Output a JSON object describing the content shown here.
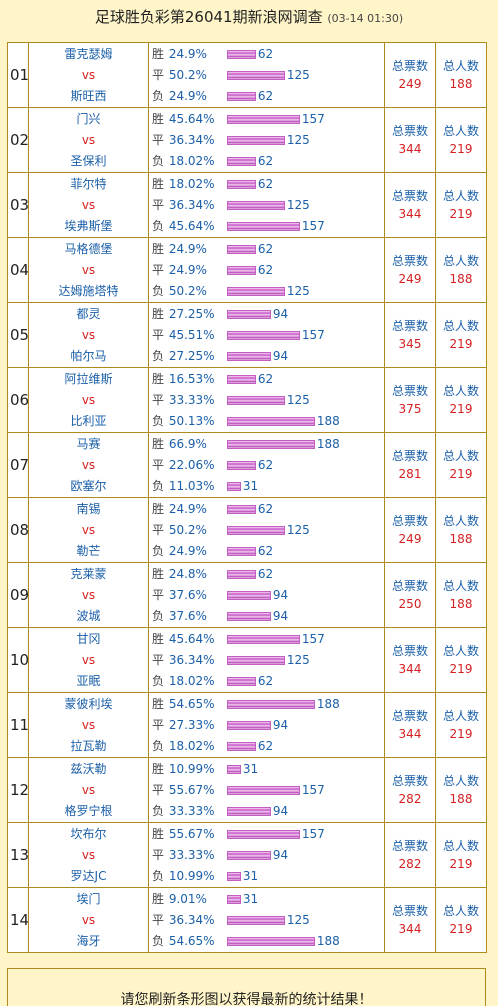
{
  "header": {
    "title": "足球胜负彩第26041期新浪网调查",
    "timestamp": "(03-14 01:30)"
  },
  "labels": {
    "vs": "vs",
    "win": "胜",
    "draw": "平",
    "lose": "负",
    "votes_label": "总票数",
    "people_label": "总人数"
  },
  "colors": {
    "team_text": "#1a5fa8",
    "vs_text": "#d62020",
    "stat_value": "#d62020",
    "bar": "#c658c6",
    "border": "#b08a1a",
    "background": "#fff5c8"
  },
  "matches": [
    {
      "no": "01",
      "home": "雷克瑟姆",
      "away": "斯旺西",
      "win_pct": "24.9%",
      "win_cnt": "62",
      "draw_pct": "50.2%",
      "draw_cnt": "125",
      "lose_pct": "24.9%",
      "lose_cnt": "62",
      "votes": "249",
      "people": "188"
    },
    {
      "no": "02",
      "home": "门兴",
      "away": "圣保利",
      "win_pct": "45.64%",
      "win_cnt": "157",
      "draw_pct": "36.34%",
      "draw_cnt": "125",
      "lose_pct": "18.02%",
      "lose_cnt": "62",
      "votes": "344",
      "people": "219"
    },
    {
      "no": "03",
      "home": "菲尔特",
      "away": "埃弗斯堡",
      "win_pct": "18.02%",
      "win_cnt": "62",
      "draw_pct": "36.34%",
      "draw_cnt": "125",
      "lose_pct": "45.64%",
      "lose_cnt": "157",
      "votes": "344",
      "people": "219"
    },
    {
      "no": "04",
      "home": "马格德堡",
      "away": "达姆施塔特",
      "win_pct": "24.9%",
      "win_cnt": "62",
      "draw_pct": "24.9%",
      "draw_cnt": "62",
      "lose_pct": "50.2%",
      "lose_cnt": "125",
      "votes": "249",
      "people": "188"
    },
    {
      "no": "05",
      "home": "都灵",
      "away": "帕尔马",
      "win_pct": "27.25%",
      "win_cnt": "94",
      "draw_pct": "45.51%",
      "draw_cnt": "157",
      "lose_pct": "27.25%",
      "lose_cnt": "94",
      "votes": "345",
      "people": "219"
    },
    {
      "no": "06",
      "home": "阿拉维斯",
      "away": "比利亚",
      "win_pct": "16.53%",
      "win_cnt": "62",
      "draw_pct": "33.33%",
      "draw_cnt": "125",
      "lose_pct": "50.13%",
      "lose_cnt": "188",
      "votes": "375",
      "people": "219"
    },
    {
      "no": "07",
      "home": "马赛",
      "away": "欧塞尔",
      "win_pct": "66.9%",
      "win_cnt": "188",
      "draw_pct": "22.06%",
      "draw_cnt": "62",
      "lose_pct": "11.03%",
      "lose_cnt": "31",
      "votes": "281",
      "people": "219"
    },
    {
      "no": "08",
      "home": "南锡",
      "away": "勒芒",
      "win_pct": "24.9%",
      "win_cnt": "62",
      "draw_pct": "50.2%",
      "draw_cnt": "125",
      "lose_pct": "24.9%",
      "lose_cnt": "62",
      "votes": "249",
      "people": "188"
    },
    {
      "no": "09",
      "home": "克莱蒙",
      "away": "波城",
      "win_pct": "24.8%",
      "win_cnt": "62",
      "draw_pct": "37.6%",
      "draw_cnt": "94",
      "lose_pct": "37.6%",
      "lose_cnt": "94",
      "votes": "250",
      "people": "188"
    },
    {
      "no": "10",
      "home": "甘冈",
      "away": "亚眠",
      "win_pct": "45.64%",
      "win_cnt": "157",
      "draw_pct": "36.34%",
      "draw_cnt": "125",
      "lose_pct": "18.02%",
      "lose_cnt": "62",
      "votes": "344",
      "people": "219"
    },
    {
      "no": "11",
      "home": "蒙彼利埃",
      "away": "拉瓦勒",
      "win_pct": "54.65%",
      "win_cnt": "188",
      "draw_pct": "27.33%",
      "draw_cnt": "94",
      "lose_pct": "18.02%",
      "lose_cnt": "62",
      "votes": "344",
      "people": "219"
    },
    {
      "no": "12",
      "home": "兹沃勒",
      "away": "格罗宁根",
      "win_pct": "10.99%",
      "win_cnt": "31",
      "draw_pct": "55.67%",
      "draw_cnt": "157",
      "lose_pct": "33.33%",
      "lose_cnt": "94",
      "votes": "282",
      "people": "188"
    },
    {
      "no": "13",
      "home": "坎布尔",
      "away": "罗达JC",
      "win_pct": "55.67%",
      "win_cnt": "157",
      "draw_pct": "33.33%",
      "draw_cnt": "94",
      "lose_pct": "10.99%",
      "lose_cnt": "31",
      "votes": "282",
      "people": "219"
    },
    {
      "no": "14",
      "home": "埃门",
      "away": "海牙",
      "win_pct": "9.01%",
      "win_cnt": "31",
      "draw_pct": "36.34%",
      "draw_cnt": "125",
      "lose_pct": "54.65%",
      "lose_cnt": "188",
      "votes": "344",
      "people": "219"
    }
  ],
  "footer": {
    "text": "请您刷新条形图以获得最新的统计结果！"
  }
}
